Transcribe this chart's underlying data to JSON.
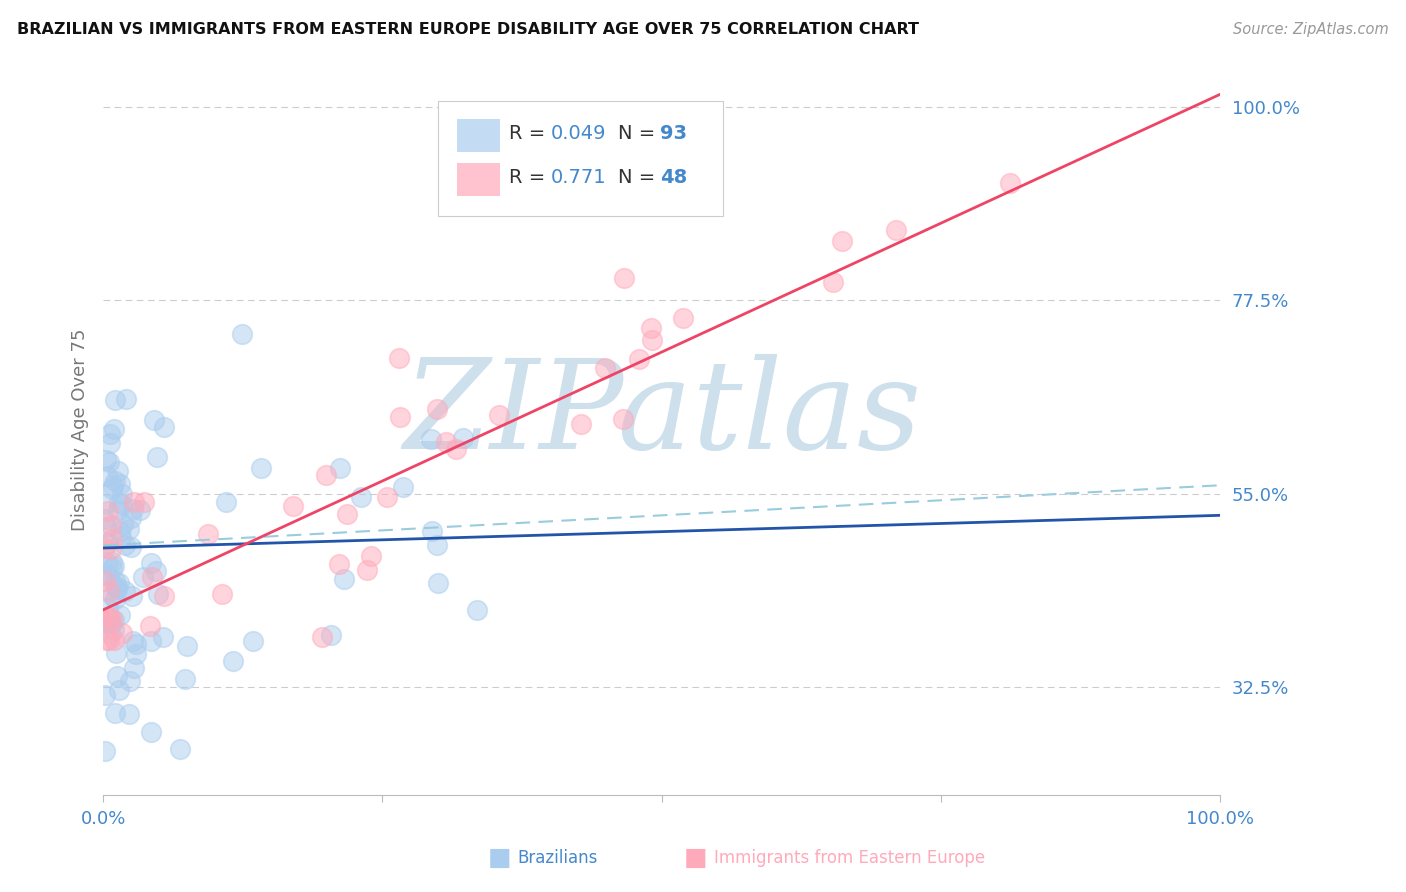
{
  "title": "BRAZILIAN VS IMMIGRANTS FROM EASTERN EUROPE DISABILITY AGE OVER 75 CORRELATION CHART",
  "source": "Source: ZipAtlas.com",
  "ylabel": "Disability Age Over 75",
  "blue_color": "#aaccee",
  "pink_color": "#ffaabb",
  "blue_line_color": "#2255aa",
  "pink_line_color": "#ee4466",
  "dashed_line_color": "#99ccdd",
  "text_black": "#333333",
  "axis_blue": "#4488cc",
  "axis_label_color": "#4477bb",
  "watermark_color": "#cde0ec",
  "watermark_text": "ZIPatlas",
  "background_color": "#ffffff",
  "grid_color": "#cccccc",
  "ytick_labels": [
    "100.0%",
    "77.5%",
    "55.0%",
    "32.5%"
  ],
  "ytick_values": [
    1.0,
    0.775,
    0.55,
    0.325
  ],
  "ylim": [
    0.2,
    1.05
  ],
  "xlim": [
    0.0,
    1.0
  ],
  "R_blue": "0.049",
  "N_blue": "93",
  "R_pink": "0.771",
  "N_pink": "48",
  "label_blue": "Brazilians",
  "label_pink": "Immigrants from Eastern Europe",
  "blue_line_intercept": 0.487,
  "blue_line_slope": 0.038,
  "pink_line_intercept": 0.415,
  "pink_line_slope": 0.6,
  "dashed_intercept": 0.49,
  "dashed_slope": 0.07
}
